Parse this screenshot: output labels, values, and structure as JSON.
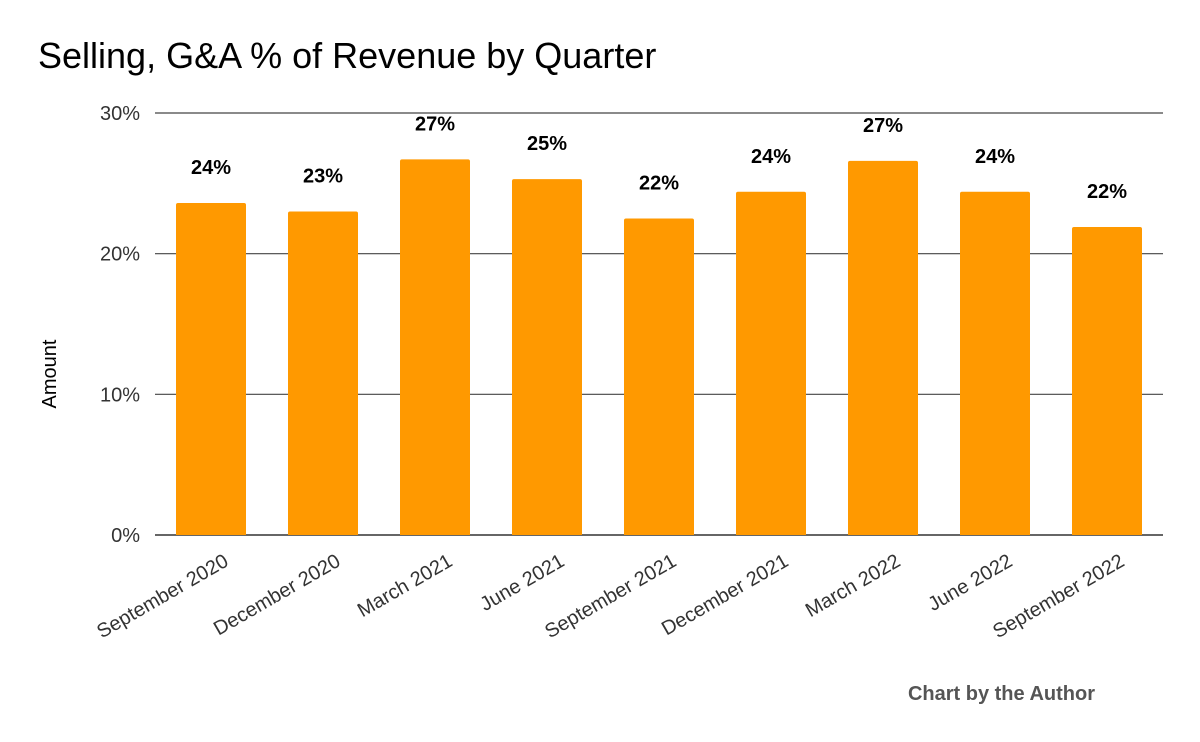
{
  "chart_data": {
    "type": "bar",
    "title": "Selling, G&A % of Revenue by Quarter",
    "xlabel": "",
    "ylabel": "Amount",
    "categories": [
      "September 2020",
      "December 2020",
      "March 2021",
      "June 2021",
      "September 2021",
      "December 2021",
      "March 2022",
      "June 2022",
      "September 2022"
    ],
    "values": [
      23.6,
      23.0,
      26.7,
      25.3,
      22.5,
      24.4,
      26.6,
      24.4,
      21.9
    ],
    "data_labels": [
      "24%",
      "23%",
      "27%",
      "25%",
      "22%",
      "24%",
      "27%",
      "24%",
      "22%"
    ],
    "ylim": [
      0,
      30
    ],
    "yticks": [
      0,
      10,
      20,
      30
    ],
    "ytick_labels": [
      "0%",
      "10%",
      "20%",
      "30%"
    ],
    "grid": true,
    "legend": "none",
    "bar_color": "#ff9900",
    "credit": "Chart by the Author"
  }
}
